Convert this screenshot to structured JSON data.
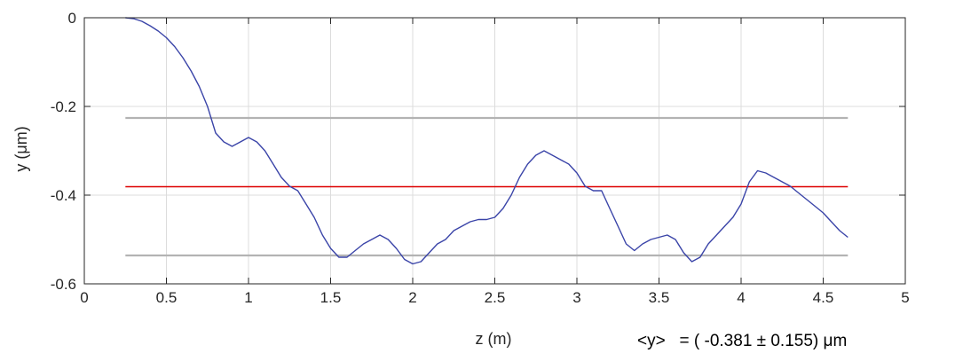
{
  "chart_data": {
    "type": "line",
    "xlabel": "z (m)",
    "ylabel": "y   (μm)",
    "xlim": [
      0,
      5
    ],
    "ylim": [
      -0.6,
      0
    ],
    "xticks": [
      0,
      0.5,
      1,
      1.5,
      2,
      2.5,
      3,
      3.5,
      4,
      4.5,
      5
    ],
    "xtick_labels": [
      "0",
      "0.5",
      "1",
      "1.5",
      "2",
      "2.5",
      "3",
      "3.5",
      "4",
      "4.5",
      "5"
    ],
    "yticks": [
      0,
      -0.2,
      -0.4,
      -0.6
    ],
    "ytick_labels": [
      "0",
      "-0.2",
      "-0.4",
      "-0.6"
    ],
    "grid": true,
    "series": [
      {
        "color": "#3a44a8",
        "x": [
          0.25,
          0.3,
          0.35,
          0.4,
          0.45,
          0.5,
          0.55,
          0.6,
          0.65,
          0.7,
          0.75,
          0.8,
          0.85,
          0.9,
          0.95,
          1.0,
          1.05,
          1.1,
          1.15,
          1.2,
          1.25,
          1.3,
          1.35,
          1.4,
          1.45,
          1.5,
          1.55,
          1.6,
          1.65,
          1.7,
          1.75,
          1.8,
          1.85,
          1.9,
          1.95,
          2.0,
          2.05,
          2.1,
          2.15,
          2.2,
          2.25,
          2.3,
          2.35,
          2.4,
          2.45,
          2.5,
          2.55,
          2.6,
          2.65,
          2.7,
          2.75,
          2.8,
          2.85,
          2.9,
          2.95,
          3.0,
          3.05,
          3.1,
          3.15,
          3.2,
          3.25,
          3.3,
          3.35,
          3.4,
          3.45,
          3.5,
          3.55,
          3.6,
          3.65,
          3.7,
          3.75,
          3.8,
          3.85,
          3.9,
          3.95,
          4.0,
          4.05,
          4.1,
          4.15,
          4.2,
          4.25,
          4.3,
          4.35,
          4.4,
          4.45,
          4.5,
          4.55,
          4.6,
          4.65
        ],
        "y": [
          0.0,
          -0.002,
          -0.008,
          -0.018,
          -0.03,
          -0.045,
          -0.065,
          -0.09,
          -0.12,
          -0.155,
          -0.2,
          -0.26,
          -0.28,
          -0.29,
          -0.28,
          -0.27,
          -0.28,
          -0.3,
          -0.33,
          -0.36,
          -0.38,
          -0.39,
          -0.42,
          -0.45,
          -0.49,
          -0.52,
          -0.54,
          -0.54,
          -0.525,
          -0.51,
          -0.5,
          -0.49,
          -0.5,
          -0.52,
          -0.545,
          -0.555,
          -0.55,
          -0.53,
          -0.51,
          -0.5,
          -0.48,
          -0.47,
          -0.46,
          -0.455,
          -0.455,
          -0.45,
          -0.43,
          -0.4,
          -0.36,
          -0.33,
          -0.31,
          -0.3,
          -0.31,
          -0.32,
          -0.33,
          -0.35,
          -0.38,
          -0.39,
          -0.39,
          -0.43,
          -0.47,
          -0.51,
          -0.525,
          -0.51,
          -0.5,
          -0.495,
          -0.49,
          -0.5,
          -0.53,
          -0.55,
          -0.54,
          -0.51,
          -0.49,
          -0.47,
          -0.45,
          -0.42,
          -0.37,
          -0.345,
          -0.35,
          -0.36,
          -0.37,
          -0.38,
          -0.395,
          -0.41,
          -0.425,
          -0.44,
          -0.46,
          -0.48,
          -0.495
        ]
      },
      {
        "color": "#dd0000",
        "x": [
          0.25,
          4.65
        ],
        "y": [
          -0.381,
          -0.381
        ]
      },
      {
        "color": "#b3b3b3",
        "x": [
          0.25,
          4.65
        ],
        "y": [
          -0.226,
          -0.226
        ]
      },
      {
        "color": "#b3b3b3",
        "x": [
          0.25,
          4.65
        ],
        "y": [
          -0.536,
          -0.536
        ]
      }
    ]
  },
  "annotation": "<y>   = ( -0.381 ± 0.155) μm"
}
